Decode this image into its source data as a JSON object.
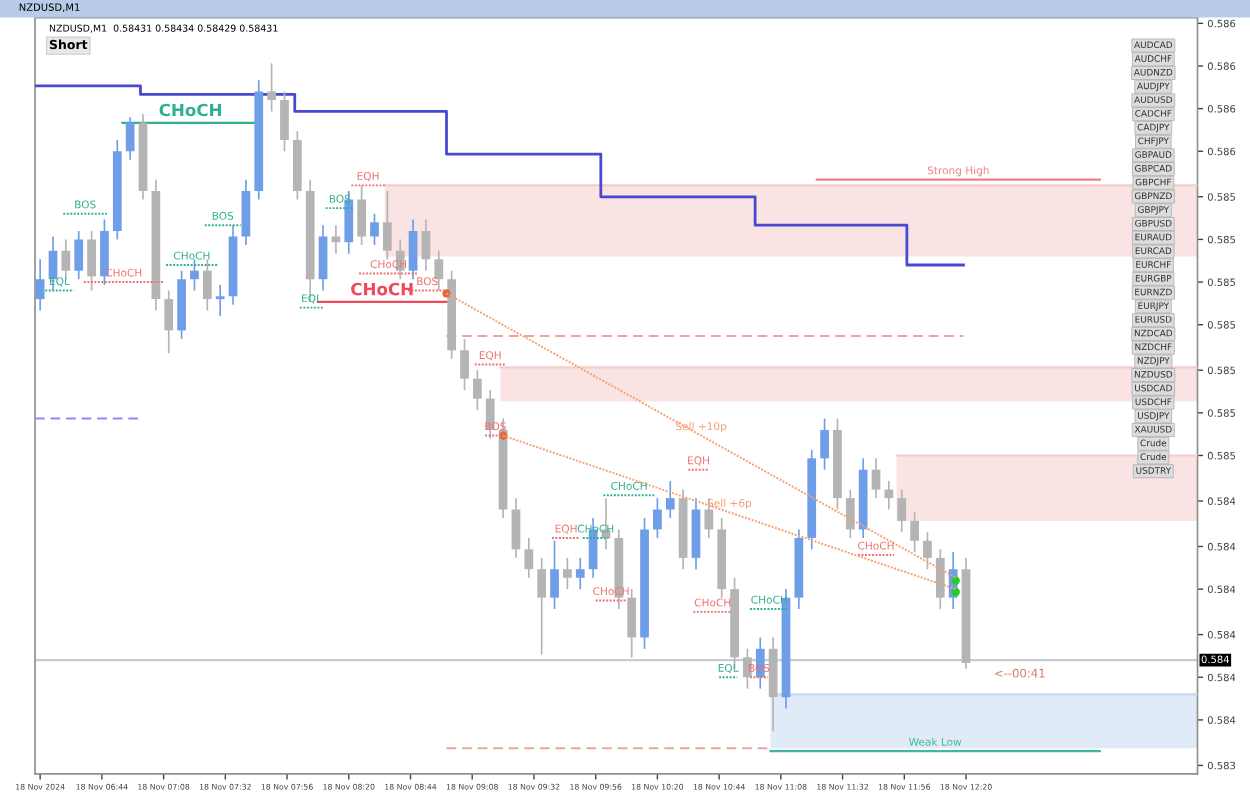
{
  "chart_data": {
    "type": "candlestick",
    "title": "NZDUSD,M1",
    "subtitle": "NZDUSD,M1  0.58431 0.58434 0.58429 0.58431",
    "x": [
      "2024-11-18T06:20",
      "2024-11-18T06:25",
      "2024-11-18T06:30",
      "2024-11-18T06:35",
      "2024-11-18T06:40",
      "2024-11-18T06:45",
      "2024-11-18T06:50",
      "2024-11-18T06:55",
      "2024-11-18T07:00",
      "2024-11-18T07:05",
      "2024-11-18T07:10",
      "2024-11-18T07:15",
      "2024-11-18T07:20",
      "2024-11-18T07:25",
      "2024-11-18T07:30",
      "2024-11-18T07:35",
      "2024-11-18T07:40",
      "2024-11-18T07:45",
      "2024-11-18T07:50",
      "2024-11-18T07:55",
      "2024-11-18T08:00",
      "2024-11-18T08:05",
      "2024-11-18T08:10",
      "2024-11-18T08:15",
      "2024-11-18T08:20",
      "2024-11-18T08:25",
      "2024-11-18T08:30",
      "2024-11-18T08:35",
      "2024-11-18T08:40",
      "2024-11-18T08:45",
      "2024-11-18T08:50",
      "2024-11-18T08:55",
      "2024-11-18T09:00",
      "2024-11-18T09:05",
      "2024-11-18T09:10",
      "2024-11-18T09:15",
      "2024-11-18T09:20",
      "2024-11-18T09:25",
      "2024-11-18T09:30",
      "2024-11-18T09:35",
      "2024-11-18T09:40",
      "2024-11-18T09:45",
      "2024-11-18T09:50",
      "2024-11-18T09:55",
      "2024-11-18T10:00",
      "2024-11-18T10:05",
      "2024-11-18T10:10",
      "2024-11-18T10:15",
      "2024-11-18T10:20",
      "2024-11-18T10:25",
      "2024-11-18T10:30",
      "2024-11-18T10:35",
      "2024-11-18T10:40",
      "2024-11-18T10:45",
      "2024-11-18T10:50",
      "2024-11-18T10:55",
      "2024-11-18T11:00",
      "2024-11-18T11:05",
      "2024-11-18T11:10",
      "2024-11-18T11:15",
      "2024-11-18T11:20",
      "2024-11-18T11:25",
      "2024-11-18T11:30",
      "2024-11-18T11:35",
      "2024-11-18T11:40",
      "2024-11-18T11:45",
      "2024-11-18T11:50",
      "2024-11-18T11:55",
      "2024-11-18T12:00",
      "2024-11-18T12:05",
      "2024-11-18T12:10",
      "2024-11-18T12:15",
      "2024-11-18T12:20"
    ],
    "ohlc": [
      [
        0.58506,
        0.5852,
        0.58502,
        0.58513
      ],
      [
        0.58513,
        0.58528,
        0.58509,
        0.58523
      ],
      [
        0.58523,
        0.58527,
        0.58513,
        0.58516
      ],
      [
        0.58516,
        0.5853,
        0.58513,
        0.58527
      ],
      [
        0.58527,
        0.5853,
        0.58509,
        0.58514
      ],
      [
        0.58514,
        0.58534,
        0.58511,
        0.5853
      ],
      [
        0.5853,
        0.58562,
        0.58527,
        0.58558
      ],
      [
        0.58558,
        0.5857,
        0.58555,
        0.58568
      ],
      [
        0.58568,
        0.58571,
        0.58541,
        0.58544
      ],
      [
        0.58544,
        0.58548,
        0.58502,
        0.58506
      ],
      [
        0.58506,
        0.58509,
        0.58487,
        0.58495
      ],
      [
        0.58495,
        0.58516,
        0.58492,
        0.58513
      ],
      [
        0.58513,
        0.5852,
        0.58509,
        0.58516
      ],
      [
        0.58516,
        0.5852,
        0.58502,
        0.58506
      ],
      [
        0.58506,
        0.58511,
        0.585,
        0.58507
      ],
      [
        0.58507,
        0.58532,
        0.58504,
        0.58528
      ],
      [
        0.58528,
        0.58548,
        0.58525,
        0.58544
      ],
      [
        0.58544,
        0.58583,
        0.58541,
        0.58579
      ],
      [
        0.58579,
        0.58589,
        0.58572,
        0.58576
      ],
      [
        0.58576,
        0.58579,
        0.58558,
        0.58562
      ],
      [
        0.58562,
        0.58565,
        0.58541,
        0.58544
      ],
      [
        0.58544,
        0.58548,
        0.58505,
        0.58513
      ],
      [
        0.58513,
        0.58532,
        0.58509,
        0.58528
      ],
      [
        0.58528,
        0.58532,
        0.58522,
        0.58526
      ],
      [
        0.58526,
        0.58544,
        0.58522,
        0.58541
      ],
      [
        0.58541,
        0.58546,
        0.58525,
        0.58528
      ],
      [
        0.58528,
        0.58536,
        0.58525,
        0.58533
      ],
      [
        0.58533,
        0.58544,
        0.5852,
        0.58523
      ],
      [
        0.58523,
        0.58527,
        0.58513,
        0.58516
      ],
      [
        0.58516,
        0.58534,
        0.58513,
        0.5853
      ],
      [
        0.5853,
        0.58534,
        0.58516,
        0.5852
      ],
      [
        0.5852,
        0.58523,
        0.58509,
        0.58513
      ],
      [
        0.58513,
        0.58516,
        0.58485,
        0.58488
      ],
      [
        0.58488,
        0.58492,
        0.58474,
        0.58478
      ],
      [
        0.58478,
        0.58481,
        0.58467,
        0.58471
      ],
      [
        0.58471,
        0.58474,
        0.58457,
        0.5846
      ],
      [
        0.5846,
        0.58464,
        0.58429,
        0.58432
      ],
      [
        0.58432,
        0.58436,
        0.58415,
        0.58418
      ],
      [
        0.58418,
        0.58422,
        0.58408,
        0.58411
      ],
      [
        0.58411,
        0.58415,
        0.58381,
        0.58401
      ],
      [
        0.58401,
        0.58421,
        0.58397,
        0.58411
      ],
      [
        0.58411,
        0.58415,
        0.58404,
        0.58408
      ],
      [
        0.58408,
        0.58415,
        0.58404,
        0.58411
      ],
      [
        0.58411,
        0.58429,
        0.58408,
        0.58425
      ],
      [
        0.58425,
        0.58436,
        0.58418,
        0.58422
      ],
      [
        0.58422,
        0.58425,
        0.58397,
        0.58401
      ],
      [
        0.58401,
        0.58404,
        0.5838,
        0.58387
      ],
      [
        0.58387,
        0.58429,
        0.58383,
        0.58425
      ],
      [
        0.58425,
        0.58436,
        0.58422,
        0.58432
      ],
      [
        0.58432,
        0.58442,
        0.58429,
        0.58436
      ],
      [
        0.58436,
        0.58439,
        0.58411,
        0.58415
      ],
      [
        0.58415,
        0.58436,
        0.58411,
        0.58432
      ],
      [
        0.58432,
        0.58436,
        0.58422,
        0.58425
      ],
      [
        0.58425,
        0.58429,
        0.58401,
        0.58404
      ],
      [
        0.58404,
        0.58408,
        0.58376,
        0.5838
      ],
      [
        0.5838,
        0.58383,
        0.58369,
        0.58373
      ],
      [
        0.58373,
        0.58387,
        0.58369,
        0.58383
      ],
      [
        0.58383,
        0.58387,
        0.58354,
        0.58366
      ],
      [
        0.58366,
        0.58404,
        0.58362,
        0.58401
      ],
      [
        0.58401,
        0.58425,
        0.58397,
        0.58422
      ],
      [
        0.58422,
        0.58453,
        0.58418,
        0.5845
      ],
      [
        0.5845,
        0.58464,
        0.58446,
        0.5846
      ],
      [
        0.5846,
        0.58464,
        0.58432,
        0.58436
      ],
      [
        0.58436,
        0.58439,
        0.58422,
        0.58425
      ],
      [
        0.58425,
        0.5845,
        0.58422,
        0.58446
      ],
      [
        0.58446,
        0.5845,
        0.58436,
        0.58439
      ],
      [
        0.58439,
        0.58442,
        0.58432,
        0.58436
      ],
      [
        0.58436,
        0.58439,
        0.58424,
        0.58428
      ],
      [
        0.58428,
        0.58431,
        0.58417,
        0.58421
      ],
      [
        0.58421,
        0.58424,
        0.58411,
        0.58415
      ],
      [
        0.58415,
        0.58418,
        0.58397,
        0.58401
      ],
      [
        0.58401,
        0.58417,
        0.58397,
        0.58411
      ],
      [
        0.58411,
        0.58415,
        0.58376,
        0.58378
      ]
    ],
    "colors": [
      "#6f9ee8",
      "#6f9ee8",
      "#b4b4b4",
      "#6f9ee8",
      "#b4b4b4",
      "#6f9ee8",
      "#6f9ee8",
      "#6f9ee8",
      "#b4b4b4",
      "#b4b4b4",
      "#b4b4b4",
      "#6f9ee8",
      "#6f9ee8",
      "#b4b4b4",
      "#6f9ee8",
      "#6f9ee8",
      "#6f9ee8",
      "#6f9ee8",
      "#b4b4b4",
      "#b4b4b4",
      "#b4b4b4",
      "#b4b4b4",
      "#6f9ee8",
      "#b4b4b4",
      "#6f9ee8",
      "#b4b4b4",
      "#6f9ee8",
      "#b4b4b4",
      "#b4b4b4",
      "#6f9ee8",
      "#b4b4b4",
      "#b4b4b4",
      "#b4b4b4",
      "#b4b4b4",
      "#b4b4b4",
      "#b4b4b4",
      "#b4b4b4",
      "#b4b4b4",
      "#b4b4b4",
      "#b4b4b4",
      "#6f9ee8",
      "#b4b4b4",
      "#6f9ee8",
      "#6f9ee8",
      "#b4b4b4",
      "#b4b4b4",
      "#b4b4b4",
      "#6f9ee8",
      "#6f9ee8",
      "#6f9ee8",
      "#b4b4b4",
      "#6f9ee8",
      "#b4b4b4",
      "#b4b4b4",
      "#b4b4b4",
      "#b4b4b4",
      "#6f9ee8",
      "#b4b4b4",
      "#6f9ee8",
      "#6f9ee8",
      "#6f9ee8",
      "#6f9ee8",
      "#b4b4b4",
      "#b4b4b4",
      "#6f9ee8",
      "#b4b4b4",
      "#b4b4b4",
      "#b4b4b4",
      "#b4b4b4",
      "#b4b4b4",
      "#b4b4b4",
      "#6f9ee8",
      "#b4b4b4"
    ],
    "series": [
      {
        "type": "line",
        "x": [
          "2024-11-18T08:34",
          "2024-11-18T13:50"
        ],
        "values": [
          0.58546,
          0.58546
        ],
        "lower": [
          0.58521,
          0.58521
        ],
        "upper": [
          0.58546,
          0.58546
        ],
        "color": "#f6cccc",
        "line_style": "solid"
      },
      {
        "type": "line",
        "x": [
          "2024-11-18T09:19",
          "2024-11-18T13:50"
        ],
        "values": [
          0.58482,
          0.58482
        ],
        "lower": [
          0.5847,
          0.5847
        ],
        "upper": [
          0.58482,
          0.58482
        ],
        "color": "#f6cccc",
        "line_style": "solid"
      },
      {
        "type": "line",
        "x": [
          "2024-11-18T11:53",
          "2024-11-18T13:50"
        ],
        "values": [
          0.58451,
          0.58451
        ],
        "lower": [
          0.58428,
          0.58428
        ],
        "upper": [
          0.58451,
          0.58451
        ],
        "color": "#f6cccc",
        "line_style": "solid"
      },
      {
        "type": "line",
        "x": [
          "2024-11-18T11:04",
          "2024-11-18T13:50"
        ],
        "values": [
          0.58367,
          0.58367
        ],
        "lower": [
          0.58348,
          0.58348
        ],
        "upper": [
          0.58367,
          0.58367
        ],
        "color": "#c8d8f0",
        "line_style": "solid"
      },
      {
        "type": "step",
        "x": [
          "2024-11-18T06:18",
          "2024-11-18T06:59",
          "2024-11-18T07:59",
          "2024-11-18T08:58",
          "2024-11-18T09:58",
          "2024-11-18T10:58",
          "2024-11-18T11:57",
          "2024-11-18T12:19"
        ],
        "values": [
          0.58581,
          0.58578,
          0.58572,
          0.58557,
          0.58542,
          0.58532,
          0.58518,
          0.58518
        ],
        "color": "#4848d0",
        "line_style": "solid"
      },
      {
        "type": "line",
        "x": [
          "2024-11-18T06:18",
          "2024-11-18T06:59"
        ],
        "values": [
          0.58464,
          0.58464
        ],
        "color": "#8c8cf0",
        "line_style": "dashed"
      },
      {
        "type": "line",
        "x": [
          "2024-11-18T08:58",
          "2024-11-18T12:19"
        ],
        "values": [
          0.58493,
          0.58493
        ],
        "color": "#f4a0a0",
        "line_style": "dashed"
      },
      {
        "type": "line",
        "x": [
          "2024-11-18T08:58",
          "2024-11-18T11:04"
        ],
        "values": [
          0.58348,
          0.58348
        ],
        "color": "#f4a0a0",
        "line_style": "dashed"
      },
      {
        "type": "line",
        "name": "CHoCH",
        "x": [
          "2024-11-18T06:52",
          "2024-11-18T07:45"
        ],
        "values": [
          0.58568,
          0.58568
        ],
        "color": "#30b090",
        "line_style": "solid"
      },
      {
        "type": "line",
        "name": "CHoCH",
        "x": [
          "2024-11-18T08:08",
          "2024-11-18T08:58"
        ],
        "values": [
          0.58505,
          0.58505
        ],
        "color": "#f04858",
        "line_style": "solid"
      },
      {
        "type": "line",
        "name": "EQL",
        "x": [
          "2024-11-18T06:22",
          "2024-11-18T06:33"
        ],
        "values": [
          0.58509,
          0.58509
        ],
        "color": "#30b090",
        "line_style": "dotted"
      },
      {
        "type": "line",
        "name": "CHoCH",
        "x": [
          "2024-11-18T06:37",
          "2024-11-18T07:08"
        ],
        "values": [
          0.58512,
          0.58512
        ],
        "color": "#f07070",
        "line_style": "dotted"
      },
      {
        "type": "line",
        "name": "BOS",
        "x": [
          "2024-11-18T06:29",
          "2024-11-18T06:46"
        ],
        "values": [
          0.58536,
          0.58536
        ],
        "color": "#30b090",
        "line_style": "dotted"
      },
      {
        "type": "line",
        "name": "BOS",
        "x": [
          "2024-11-18T07:24",
          "2024-11-18T07:38"
        ],
        "values": [
          0.58532,
          0.58532
        ],
        "color": "#30b090",
        "line_style": "dotted"
      },
      {
        "type": "line",
        "name": "CHoCH",
        "x": [
          "2024-11-18T07:09",
          "2024-11-18T07:29"
        ],
        "values": [
          0.58518,
          0.58518
        ],
        "color": "#30b090",
        "line_style": "dotted"
      },
      {
        "type": "line",
        "name": "BOS",
        "x": [
          "2024-11-18T08:11",
          "2024-11-18T08:22"
        ],
        "values": [
          0.58538,
          0.58538
        ],
        "color": "#30b090",
        "line_style": "dotted"
      },
      {
        "type": "line",
        "name": "EQH",
        "x": [
          "2024-11-18T08:21",
          "2024-11-18T08:34"
        ],
        "values": [
          0.58546,
          0.58546
        ],
        "color": "#f07070",
        "line_style": "dotted"
      },
      {
        "type": "line",
        "name": "CHoCH",
        "x": [
          "2024-11-18T08:24",
          "2024-11-18T08:47"
        ],
        "values": [
          0.58515,
          0.58515
        ],
        "color": "#f07070",
        "line_style": "dotted"
      },
      {
        "type": "line",
        "name": "BOS",
        "x": [
          "2024-11-18T08:43",
          "2024-11-18T08:58"
        ],
        "values": [
          0.58509,
          0.58509
        ],
        "color": "#f07070",
        "line_style": "dotted"
      },
      {
        "type": "line",
        "name": "EQL",
        "x": [
          "2024-11-18T08:01",
          "2024-11-18T08:10"
        ],
        "values": [
          0.58503,
          0.58503
        ],
        "color": "#30b090",
        "line_style": "dotted"
      },
      {
        "type": "line",
        "name": "EQH",
        "x": [
          "2024-11-18T09:09",
          "2024-11-18T09:21"
        ],
        "values": [
          0.58483,
          0.58483
        ],
        "color": "#f07070",
        "line_style": "dotted"
      },
      {
        "type": "line",
        "name": "BOS",
        "x": [
          "2024-11-18T09:13",
          "2024-11-18T09:21"
        ],
        "values": [
          0.58458,
          0.58458
        ],
        "color": "#f07070",
        "line_style": "dotted"
      },
      {
        "type": "line",
        "name": "EQH",
        "x": [
          "2024-11-18T09:39",
          "2024-11-18T09:50"
        ],
        "values": [
          0.58422,
          0.58422
        ],
        "color": "#f07070",
        "line_style": "dotted"
      },
      {
        "type": "line",
        "name": "CHoCH",
        "x": [
          "2024-11-18T09:51",
          "2024-11-18T10:01"
        ],
        "values": [
          0.58422,
          0.58422
        ],
        "color": "#30b090",
        "line_style": "dotted"
      },
      {
        "type": "line",
        "name": "CHoCH",
        "x": [
          "2024-11-18T09:56",
          "2024-11-18T10:08"
        ],
        "values": [
          0.584,
          0.584
        ],
        "color": "#f07070",
        "line_style": "dotted"
      },
      {
        "type": "line",
        "name": "CHoCH",
        "x": [
          "2024-11-18T09:59",
          "2024-11-18T10:19"
        ],
        "values": [
          0.58437,
          0.58437
        ],
        "color": "#30b090",
        "line_style": "dotted"
      },
      {
        "type": "line",
        "name": "EQH",
        "x": [
          "2024-11-18T10:32",
          "2024-11-18T10:40"
        ],
        "values": [
          0.58446,
          0.58446
        ],
        "color": "#f07070",
        "line_style": "dotted"
      },
      {
        "type": "line",
        "name": "CHoCH",
        "x": [
          "2024-11-18T10:34",
          "2024-11-18T10:49"
        ],
        "values": [
          0.58396,
          0.58396
        ],
        "color": "#f07070",
        "line_style": "dotted"
      },
      {
        "type": "line",
        "name": "CHoCH",
        "x": [
          "2024-11-18T10:56",
          "2024-11-18T11:11"
        ],
        "values": [
          0.58397,
          0.58397
        ],
        "color": "#30b090",
        "line_style": "dotted"
      },
      {
        "type": "line",
        "name": "EQL",
        "x": [
          "2024-11-18T10:44",
          "2024-11-18T10:51"
        ],
        "values": [
          0.58373,
          0.58373
        ],
        "color": "#30b090",
        "line_style": "dotted"
      },
      {
        "type": "line",
        "name": "BOS",
        "x": [
          "2024-11-18T10:56",
          "2024-11-18T11:03"
        ],
        "values": [
          0.58373,
          0.58373
        ],
        "color": "#f07070",
        "line_style": "dotted"
      },
      {
        "type": "line",
        "name": "CHoCH",
        "x": [
          "2024-11-18T11:38",
          "2024-11-18T11:52"
        ],
        "values": [
          0.58416,
          0.58416
        ],
        "color": "#f07070",
        "line_style": "dotted"
      },
      {
        "type": "line",
        "name": "Strong High",
        "x": [
          "2024-11-18T11:22",
          "2024-11-18T13:12"
        ],
        "values": [
          0.58548,
          0.58548
        ],
        "color": "#f08080",
        "line_style": "solid"
      },
      {
        "type": "line",
        "name": "Weak Low",
        "x": [
          "2024-11-18T11:04",
          "2024-11-18T13:12"
        ],
        "values": [
          0.58347,
          0.58347
        ],
        "color": "#40b8a0",
        "line_style": "solid"
      },
      {
        "type": "line",
        "name": "Sell +10p",
        "x": [
          "2024-11-18T08:58",
          "2024-11-18T12:16"
        ],
        "values": [
          0.58508,
          0.58408
        ],
        "color": "#f4a070",
        "line_style": "dotted"
      },
      {
        "type": "line",
        "name": "Sell +6p",
        "x": [
          "2024-11-18T09:20",
          "2024-11-18T12:16"
        ],
        "values": [
          0.58458,
          0.58404
        ],
        "color": "#f4a070",
        "line_style": "dotted"
      },
      {
        "type": "scatter",
        "x": [
          "2024-11-18T08:58",
          "2024-11-18T09:20"
        ],
        "values": [
          0.58508,
          0.58458
        ],
        "color": "#e06a3a",
        "marker": "circle"
      },
      {
        "type": "scatter",
        "x": [
          "2024-11-18T12:16",
          "2024-11-18T12:16"
        ],
        "values": [
          0.58407,
          0.58403
        ],
        "color": "#22cc22",
        "marker": "circle"
      }
    ],
    "ref_lines": [
      {
        "axis": "y",
        "value": 0.58379,
        "label": "0.584",
        "color": "#c8ccd0"
      }
    ],
    "xlim": [
      "2024-11-18T06:18",
      "2024-11-18T13:50"
    ],
    "xticks": [
      {
        "value": "2024-11-18T06:20",
        "label": "18 Nov 2024"
      },
      {
        "value": "2024-11-18T06:44",
        "label": "18 Nov 06:44"
      },
      {
        "value": "2024-11-18T07:08",
        "label": "18 Nov 07:08"
      },
      {
        "value": "2024-11-18T07:32",
        "label": "18 Nov 07:32"
      },
      {
        "value": "2024-11-18T07:56",
        "label": "18 Nov 07:56"
      },
      {
        "value": "2024-11-18T08:20",
        "label": "18 Nov 08:20"
      },
      {
        "value": "2024-11-18T08:44",
        "label": "18 Nov 08:44"
      },
      {
        "value": "2024-11-18T09:08",
        "label": "18 Nov 09:08"
      },
      {
        "value": "2024-11-18T09:32",
        "label": "18 Nov 09:32"
      },
      {
        "value": "2024-11-18T09:56",
        "label": "18 Nov 09:56"
      },
      {
        "value": "2024-11-18T10:20",
        "label": "18 Nov 10:20"
      },
      {
        "value": "2024-11-18T10:44",
        "label": "18 Nov 10:44"
      },
      {
        "value": "2024-11-18T11:08",
        "label": "18 Nov 11:08"
      },
      {
        "value": "2024-11-18T11:32",
        "label": "18 Nov 11:32"
      },
      {
        "value": "2024-11-18T11:56",
        "label": "18 Nov 11:56"
      },
      {
        "value": "2024-11-18T12:20",
        "label": "18 Nov 12:20"
      }
    ],
    "ylim": [
      0.58339,
      0.58605
    ],
    "yticks": [
      {
        "value": 0.58342,
        "label": "0.583"
      },
      {
        "value": 0.58358,
        "label": "0.584"
      },
      {
        "value": 0.58373,
        "label": "0.584"
      },
      {
        "value": 0.58388,
        "label": "0.584"
      },
      {
        "value": 0.58404,
        "label": "0.584"
      },
      {
        "value": 0.58419,
        "label": "0.584"
      },
      {
        "value": 0.58435,
        "label": "0.584"
      },
      {
        "value": 0.58451,
        "label": "0.585"
      },
      {
        "value": 0.58466,
        "label": "0.585"
      },
      {
        "value": 0.58481,
        "label": "0.585"
      },
      {
        "value": 0.58497,
        "label": "0.585"
      },
      {
        "value": 0.58512,
        "label": "0.585"
      },
      {
        "value": 0.58527,
        "label": "0.585"
      },
      {
        "value": 0.58542,
        "label": "0.585"
      },
      {
        "value": 0.58558,
        "label": "0.586"
      },
      {
        "value": 0.58573,
        "label": "0.586"
      },
      {
        "value": 0.58588,
        "label": "0.586"
      },
      {
        "value": 0.58603,
        "label": "0.586"
      }
    ],
    "grid": false,
    "legend": false,
    "annotations": [
      {
        "text": "<--00:41",
        "x": "2024-11-18T12:20",
        "y": 0.58378
      },
      "Short",
      "AUDCAD",
      "AUDCHF",
      "AUDNZD",
      "AUDJPY",
      "AUDUSD",
      "CADCHF",
      "CADJPY",
      "CHFJPY",
      "GBPAUD",
      "GBPCAD",
      "GBPCHF",
      "GBPNZD",
      "GBPJPY",
      "GBPUSD",
      "EURAUD",
      "EURCAD",
      "EURCHF",
      "EURGBP",
      "EURNZD",
      "EURJPY",
      "EURUSD",
      "NZDCAD",
      "NZDCHF",
      "NZDJPY",
      "NZDUSD",
      "USDCAD",
      "USDCHF",
      "USDJPY",
      "XAUUSD",
      "Crude",
      "Crude",
      "USDTRY"
    ]
  }
}
